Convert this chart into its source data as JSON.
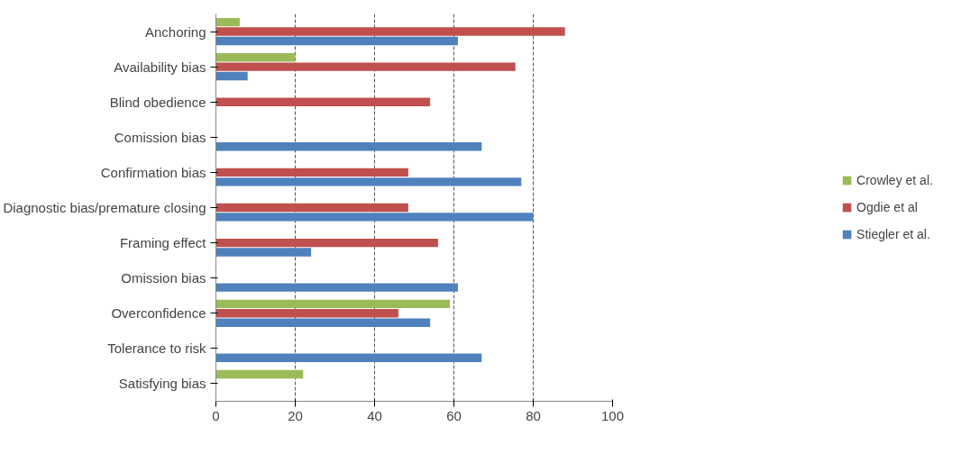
{
  "chart_data": {
    "type": "bar",
    "orientation": "horizontal",
    "categories": [
      "Anchoring",
      "Availability bias",
      "Blind obedience",
      "Comission bias",
      "Confirmation bias",
      "Diagnostic bias/premature closing",
      "Framing effect",
      "Omission bias",
      "Overconfidence",
      "Tolerance to risk",
      "Satisfying bias"
    ],
    "series": [
      {
        "name": "Crowley et al.",
        "color": "#9bbb59",
        "values": [
          6,
          20,
          null,
          null,
          null,
          null,
          null,
          null,
          59,
          null,
          22
        ]
      },
      {
        "name": "Ogdie et al",
        "color": "#c0504d",
        "values": [
          88,
          75.5,
          54,
          null,
          48.5,
          48.5,
          56,
          null,
          46,
          null,
          null
        ]
      },
      {
        "name": "Stiegler et al.",
        "color": "#4f81bd",
        "values": [
          61,
          8,
          null,
          67,
          77,
          80,
          24,
          61,
          54,
          67,
          null
        ]
      }
    ],
    "xlim": [
      0,
      100
    ],
    "xticks": [
      0,
      20,
      40,
      60,
      80,
      100
    ],
    "grid": "x",
    "legend": "right"
  }
}
